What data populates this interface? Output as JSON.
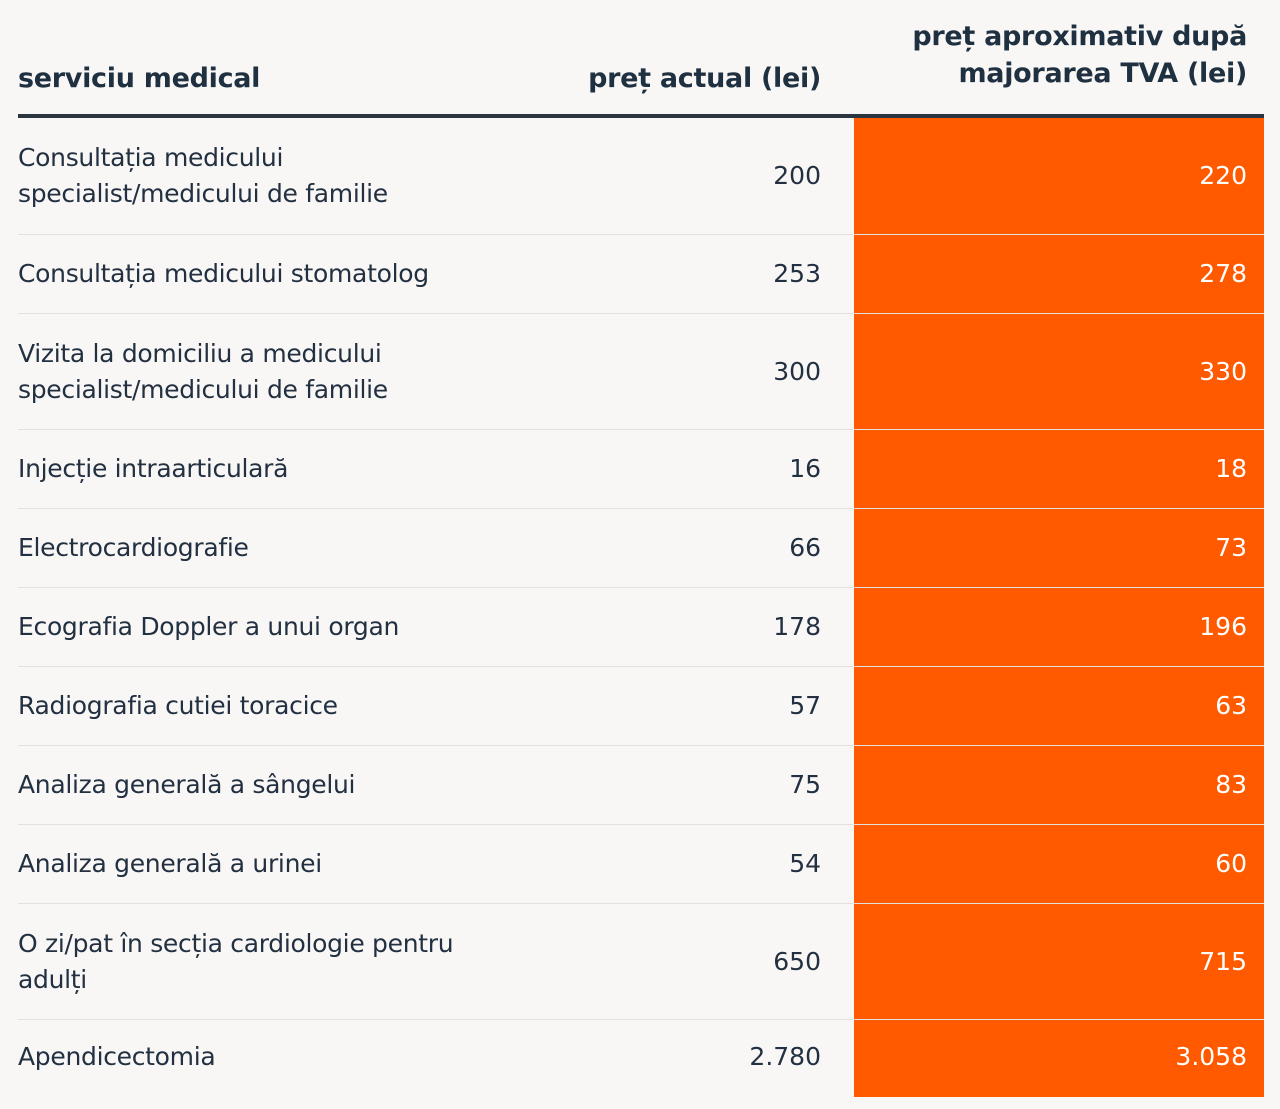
{
  "chart_data": {
    "type": "table",
    "columns": [
      "serviciu medical",
      "preț actual (lei)",
      "preț aproximativ după majorarea TVA (lei)"
    ],
    "header_new_line1": "preț aproximativ după",
    "header_new_line2": "majorarea TVA (lei)",
    "highlight_color": "#ff5a00",
    "rows": [
      {
        "service": "Consultația medicului specialist/medicului de familie",
        "current": "200",
        "new": "220"
      },
      {
        "service": "Consultația medicului stomatolog",
        "current": "253",
        "new": "278"
      },
      {
        "service": "Vizita la domiciliu a medicului specialist/medicului de familie",
        "current": "300",
        "new": "330"
      },
      {
        "service": "Injecție intraarticulară",
        "current": "16",
        "new": "18"
      },
      {
        "service": "Electrocardiografie",
        "current": "66",
        "new": "73"
      },
      {
        "service": "Ecografia Doppler a unui organ",
        "current": "178",
        "new": "196"
      },
      {
        "service": "Radiografia cutiei toracice",
        "current": "57",
        "new": "63"
      },
      {
        "service": "Analiza generală a sângelui",
        "current": "75",
        "new": "83"
      },
      {
        "service": "Analiza generală a urinei",
        "current": "54",
        "new": "60"
      },
      {
        "service": "O zi/pat în secția cardiologie pentru adulți",
        "current": "650",
        "new": "715"
      },
      {
        "service": "Apendicectomia",
        "current": "2.780",
        "new": "3.058"
      }
    ]
  }
}
